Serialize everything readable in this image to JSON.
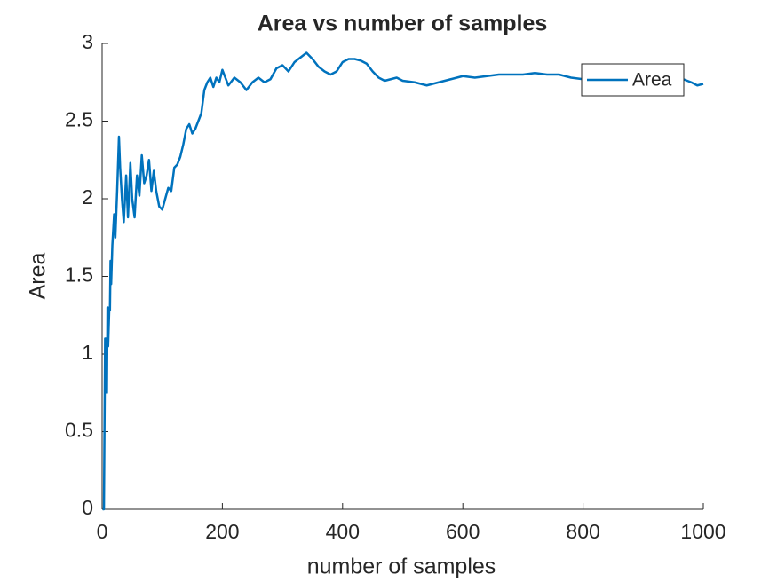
{
  "chart_data": {
    "type": "line",
    "title": "Area vs number of samples",
    "x_label": "number of samples",
    "y_label": "Area",
    "x": [
      1,
      3,
      5,
      7,
      8,
      9,
      10,
      12,
      13,
      14,
      15,
      17,
      20,
      22,
      25,
      28,
      30,
      33,
      36,
      40,
      43,
      47,
      50,
      54,
      58,
      62,
      66,
      70,
      74,
      78,
      82,
      86,
      90,
      95,
      100,
      105,
      110,
      115,
      120,
      125,
      130,
      135,
      140,
      145,
      150,
      155,
      160,
      165,
      170,
      175,
      180,
      185,
      190,
      195,
      200,
      210,
      220,
      230,
      240,
      250,
      260,
      270,
      280,
      290,
      300,
      310,
      320,
      330,
      340,
      350,
      360,
      370,
      380,
      390,
      400,
      410,
      420,
      430,
      440,
      450,
      460,
      470,
      480,
      490,
      500,
      520,
      540,
      560,
      580,
      600,
      620,
      640,
      660,
      680,
      700,
      720,
      740,
      760,
      780,
      800,
      820,
      840,
      860,
      880,
      900,
      920,
      940,
      960,
      980,
      990,
      1000
    ],
    "series": [
      {
        "name": "Area",
        "color": "#0072bd",
        "values": [
          0,
          0,
          1.1,
          1.1,
          0.75,
          1.3,
          1.05,
          1.3,
          1.28,
          1.6,
          1.45,
          1.7,
          1.9,
          1.75,
          2.05,
          2.4,
          2.2,
          2.0,
          1.85,
          2.15,
          1.88,
          2.23,
          2.0,
          1.88,
          2.15,
          2.02,
          2.28,
          2.1,
          2.15,
          2.25,
          2.05,
          2.18,
          2.05,
          1.95,
          1.93,
          2.0,
          2.07,
          2.05,
          2.2,
          2.22,
          2.27,
          2.35,
          2.45,
          2.48,
          2.42,
          2.45,
          2.5,
          2.55,
          2.7,
          2.75,
          2.78,
          2.72,
          2.78,
          2.75,
          2.83,
          2.73,
          2.78,
          2.75,
          2.7,
          2.75,
          2.78,
          2.75,
          2.77,
          2.84,
          2.86,
          2.82,
          2.88,
          2.91,
          2.94,
          2.9,
          2.85,
          2.82,
          2.8,
          2.82,
          2.88,
          2.9,
          2.9,
          2.89,
          2.87,
          2.82,
          2.78,
          2.76,
          2.77,
          2.78,
          2.76,
          2.75,
          2.73,
          2.75,
          2.77,
          2.79,
          2.78,
          2.79,
          2.8,
          2.8,
          2.8,
          2.81,
          2.8,
          2.8,
          2.78,
          2.77,
          2.76,
          2.77,
          2.79,
          2.78,
          2.77,
          2.78,
          2.77,
          2.78,
          2.75,
          2.73,
          2.74
        ]
      }
    ],
    "xlim": [
      0,
      1000
    ],
    "xticks": [
      0,
      200,
      400,
      600,
      800,
      1000
    ],
    "ylim": [
      0,
      3
    ],
    "yticks": [
      0,
      0.5,
      1,
      1.5,
      2,
      2.5,
      3
    ],
    "legend": "northeast"
  }
}
